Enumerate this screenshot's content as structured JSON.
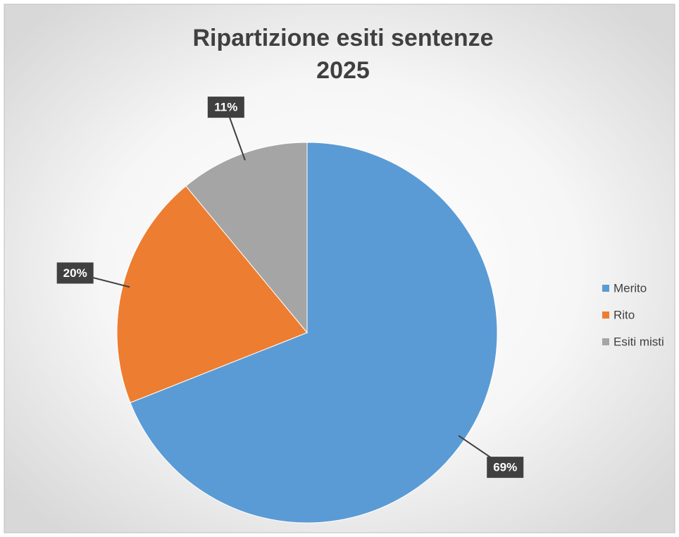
{
  "chart_data": {
    "type": "pie",
    "title": [
      "Ripartizione esiti sentenze",
      "2025"
    ],
    "categories": [
      "Merito",
      "Rito",
      "Esiti misti"
    ],
    "values": [
      69,
      20,
      11
    ],
    "value_labels": [
      "69%",
      "20%",
      "11%"
    ],
    "colors": [
      "#5b9bd5",
      "#ed7d31",
      "#a5a5a5"
    ],
    "legend": "right"
  }
}
